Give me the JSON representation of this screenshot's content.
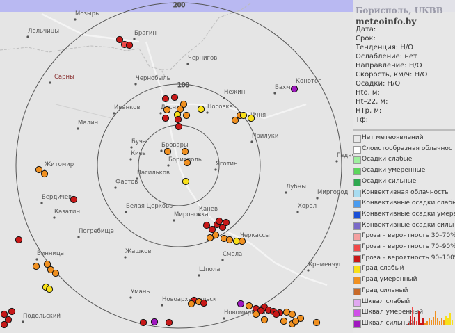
{
  "header": {
    "range_label": "200"
  },
  "station": {
    "title": "Борисполь, UKBB",
    "site": "meteoinfo.by"
  },
  "info": [
    {
      "label": "Дата:"
    },
    {
      "label": "Срок:"
    },
    {
      "label": "Тенденция: Н/О"
    },
    {
      "label": "Ослабление: нет"
    },
    {
      "label": "Направление: Н/О"
    },
    {
      "label": "Скорость, км/ч: Н/О"
    },
    {
      "label": "Осадки: Н/О"
    },
    {
      "label": "Hto, м:"
    },
    {
      "label": "Ht–22, м:"
    },
    {
      "label": "HTр, м:"
    },
    {
      "label": "Тф:"
    }
  ],
  "range_rings": [
    {
      "label": "100"
    },
    {
      "label": "200"
    }
  ],
  "legend": [
    {
      "label": "Нет метеоявлений",
      "color": "#e8e8e8"
    },
    {
      "label": "Слоистообразная облачность",
      "color": "#ffffff"
    },
    {
      "label": "Осадки слабые",
      "color": "#9ef09e"
    },
    {
      "label": "Осадки умеренные",
      "color": "#5cd65c"
    },
    {
      "label": "Осадки сильные",
      "color": "#2fa84f"
    },
    {
      "label": "Конвективная облачность",
      "color": "#a8dcf0"
    },
    {
      "label": "Конвективные осадки слабые",
      "color": "#4a9cf0"
    },
    {
      "label": "Конвективные осадки умерен.",
      "color": "#1a4fd6"
    },
    {
      "label": "Конвективные осадки сильные",
      "color": "#7a6ac8"
    },
    {
      "label": "Гроза – вероятность 30–70%",
      "color": "#f4a0a0"
    },
    {
      "label": "Гроза – вероятность 70–90%",
      "color": "#f04a4a"
    },
    {
      "label": "Гроза – вероятность 90–100%",
      "color": "#c81818"
    },
    {
      "label": "Град слабый",
      "color": "#f8e01a"
    },
    {
      "label": "Град умеренный",
      "color": "#f09020"
    },
    {
      "label": "Град сильный",
      "color": "#c86a28"
    },
    {
      "label": "Шквал слабый",
      "color": "#e0a8f0"
    },
    {
      "label": "Шквал умеренный",
      "color": "#d050e8"
    },
    {
      "label": "Шквал сильный",
      "color": "#a018c0"
    }
  ],
  "towns": [
    {
      "name": "Мозырь"
    },
    {
      "name": "Лельчицы"
    },
    {
      "name": "Брагин"
    },
    {
      "name": "Сарны"
    },
    {
      "name": "Чернигов"
    },
    {
      "name": "Чернобыль"
    },
    {
      "name": "Конотоп"
    },
    {
      "name": "Бахмач"
    },
    {
      "name": "Нежин"
    },
    {
      "name": "Десна"
    },
    {
      "name": "Носовка"
    },
    {
      "name": "Ичня"
    },
    {
      "name": "Иванков"
    },
    {
      "name": "Малин"
    },
    {
      "name": "Прилуки"
    },
    {
      "name": "Буча"
    },
    {
      "name": "Бровары"
    },
    {
      "name": "Киев"
    },
    {
      "name": "Борисполь"
    },
    {
      "name": "Житомир"
    },
    {
      "name": "Васильков"
    },
    {
      "name": "Яготин"
    },
    {
      "name": "Гадяч"
    },
    {
      "name": "Фастов"
    },
    {
      "name": "Лубны"
    },
    {
      "name": "Миргород"
    },
    {
      "name": "Бердичев"
    },
    {
      "name": "Белая Церковь"
    },
    {
      "name": "Канев"
    },
    {
      "name": "Хорол"
    },
    {
      "name": "Казатин"
    },
    {
      "name": "Мироновка"
    },
    {
      "name": "Погребище"
    },
    {
      "name": "Черкассы"
    },
    {
      "name": "Смела"
    },
    {
      "name": "Винница"
    },
    {
      "name": "Жашков"
    },
    {
      "name": "Кременчуг"
    },
    {
      "name": "Шпола"
    },
    {
      "name": "Умань"
    },
    {
      "name": "Новоархангельск"
    },
    {
      "name": "Новомиргород"
    },
    {
      "name": "Подольский"
    }
  ]
}
